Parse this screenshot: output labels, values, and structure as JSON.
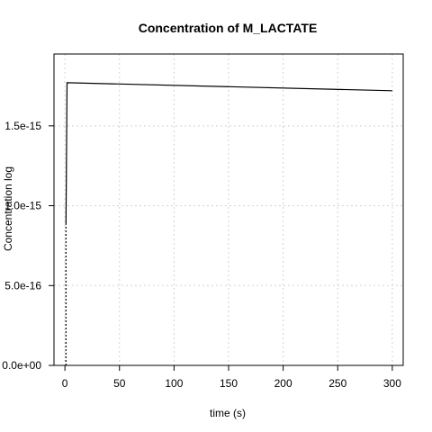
{
  "chart_data": {
    "type": "line",
    "title": "Concentration of M_LACTATE",
    "xlabel": "time (s)",
    "ylabel": "Concentration log",
    "xlim": [
      -10,
      310
    ],
    "ylim": [
      0,
      1.95e-15
    ],
    "x_ticks": [
      0,
      50,
      100,
      150,
      200,
      250,
      300
    ],
    "x_tick_labels": [
      "0",
      "50",
      "100",
      "150",
      "200",
      "250",
      "300"
    ],
    "y_ticks": [
      0,
      5e-16,
      1e-15,
      1.5e-15
    ],
    "y_tick_labels": [
      "0.0e+00",
      "5.0e-16",
      "1.0e-15",
      "1.5e-15"
    ],
    "grid": true,
    "series": [
      {
        "style": "solid",
        "x": [
          1,
          2,
          300
        ],
        "y": [
          8.8e-16,
          1.77e-15,
          1.72e-15
        ]
      },
      {
        "style": "dashed",
        "x": [
          1,
          1
        ],
        "y": [
          0,
          8.8e-16
        ]
      }
    ]
  }
}
